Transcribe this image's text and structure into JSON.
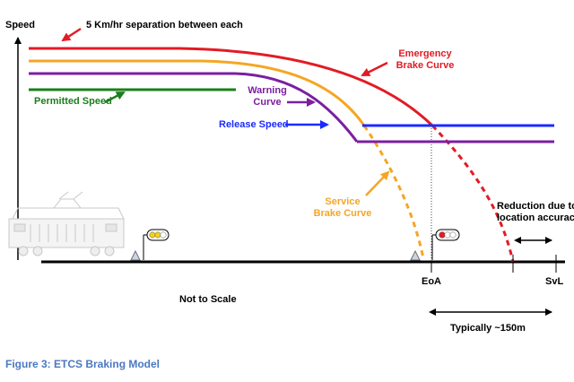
{
  "axis_label": "Speed",
  "separation_note": "5 Km/hr separation between each",
  "curves": {
    "emergency": {
      "label": "Emergency\nBrake Curve",
      "color": "#e31b23"
    },
    "service": {
      "label": "Service\nBrake Curve",
      "color": "#f5a623"
    },
    "warning": {
      "label": "Warning\nCurve",
      "color": "#7b1fa2"
    },
    "permitted": {
      "label": "Permitted Speed",
      "color": "#1a7f1a"
    },
    "release": {
      "label": "Release Speed",
      "color": "#1a2bff"
    }
  },
  "reduction_note": "Reduction due to\nlocation accuracy",
  "scale_note": "Not to Scale",
  "eoa_label": "EoA",
  "svl_label": "SvL",
  "distance_note": "Typically ~150m",
  "figure_caption": "Figure 3: ETCS Braking Model",
  "caption_color": "#4a78c2"
}
